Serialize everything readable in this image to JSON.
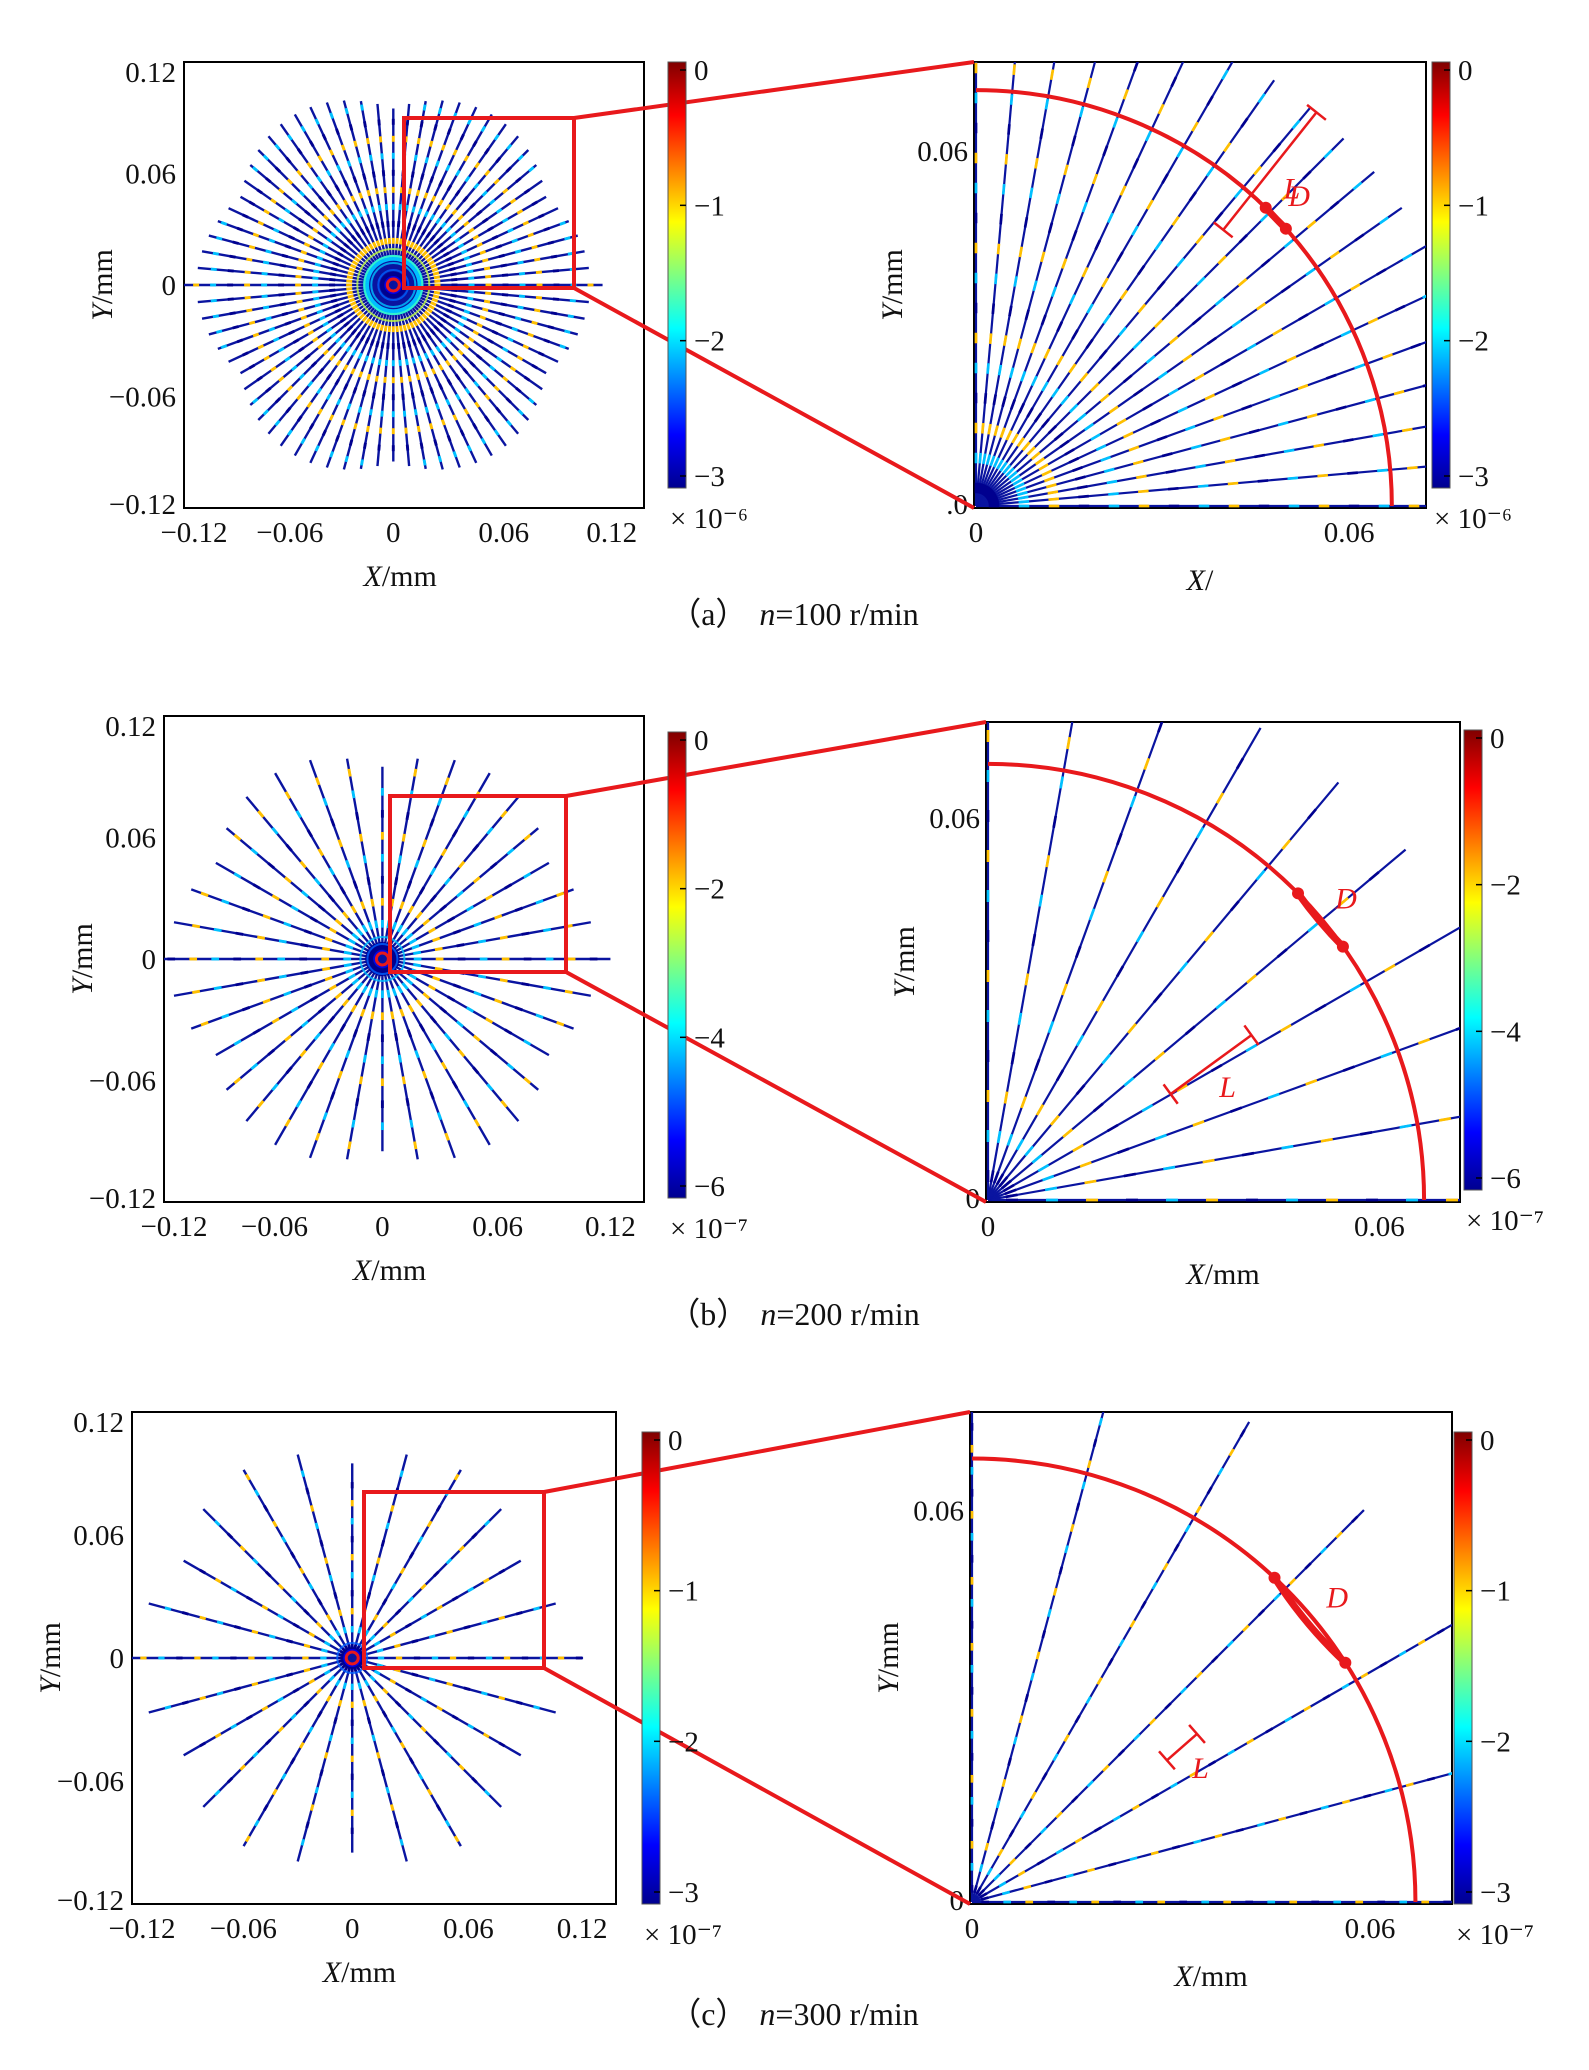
{
  "figure": {
    "panels": [
      {
        "id": "a",
        "caption_prefix": "（a）",
        "caption_var": "n",
        "caption_value": "=100 r/min",
        "overview": {
          "x_ticks": [
            "−0.12",
            "−0.06",
            "0",
            "0.06",
            "0.12"
          ],
          "y_ticks": [
            "0.12",
            "0.06",
            "0",
            "−0.06",
            "−0.12"
          ],
          "x_label_var": "X",
          "x_label_unit": "/mm",
          "y_label_var": "Y",
          "y_label_unit": "/mm",
          "colorbar_ticks": [
            "0",
            "−1",
            "−2",
            "−3"
          ],
          "colorbar_exponent": "× 10⁻⁶"
        },
        "zoom": {
          "x_ticks": [
            "0",
            "0.06"
          ],
          "y_ticks": [
            ".0",
            "0.06"
          ],
          "x_label_var": "X",
          "x_label_unit": "/",
          "y_label_var": "Y",
          "y_label_unit": "/mm",
          "colorbar_ticks": [
            "0",
            "−1",
            "−2",
            "−3"
          ],
          "colorbar_exponent": "× 10⁻⁶",
          "annot_L": "L",
          "annot_D": "D"
        }
      },
      {
        "id": "b",
        "caption_prefix": "（b）",
        "caption_var": "n",
        "caption_value": "=200 r/min",
        "overview": {
          "x_ticks": [
            "−0.12",
            "−0.06",
            "0",
            "0.06",
            "0.12"
          ],
          "y_ticks": [
            "0.12",
            "0.06",
            "0",
            "−0.06",
            "−0.12"
          ],
          "x_label_var": "X",
          "x_label_unit": "/mm",
          "y_label_var": "Y",
          "y_label_unit": "/mm",
          "colorbar_ticks": [
            "0",
            "−2",
            "−4",
            "−6"
          ],
          "colorbar_exponent": "× 10⁻⁷"
        },
        "zoom": {
          "x_ticks": [
            "0",
            "0.06"
          ],
          "y_ticks": [
            "0",
            "0.06"
          ],
          "x_label_var": "X",
          "x_label_unit": "/mm",
          "y_label_var": "Y",
          "y_label_unit": "/mm",
          "colorbar_ticks": [
            "0",
            "−2",
            "−4",
            "−6"
          ],
          "colorbar_exponent": "× 10⁻⁷",
          "annot_L": "L",
          "annot_D": "D"
        }
      },
      {
        "id": "c",
        "caption_prefix": "（c）",
        "caption_var": "n",
        "caption_value": "=300 r/min",
        "overview": {
          "x_ticks": [
            "−0.12",
            "−0.06",
            "0",
            "0.06",
            "0.12"
          ],
          "y_ticks": [
            "0.12",
            "0.06",
            "0",
            "−0.06",
            "−0.12"
          ],
          "x_label_var": "X",
          "x_label_unit": "/mm",
          "y_label_var": "Y",
          "y_label_unit": "/mm",
          "colorbar_ticks": [
            "0",
            "−1",
            "−2",
            "−3"
          ],
          "colorbar_exponent": "× 10⁻⁷"
        },
        "zoom": {
          "x_ticks": [
            "0",
            "0.06"
          ],
          "y_ticks": [
            "0",
            "0.06"
          ],
          "x_label_var": "X",
          "x_label_unit": "/mm",
          "y_label_var": "Y",
          "y_label_unit": "/mm",
          "colorbar_ticks": [
            "0",
            "−1",
            "−2",
            "−3"
          ],
          "colorbar_exponent": "× 10⁻⁷",
          "annot_L": "L",
          "annot_D": "D"
        }
      }
    ],
    "colors": {
      "highlight": "#e8191c",
      "colormap": [
        "#00008f",
        "#0000ff",
        "#0080ff",
        "#00ffff",
        "#80ff80",
        "#ffff00",
        "#ff8000",
        "#ff0000",
        "#800000"
      ]
    }
  }
}
